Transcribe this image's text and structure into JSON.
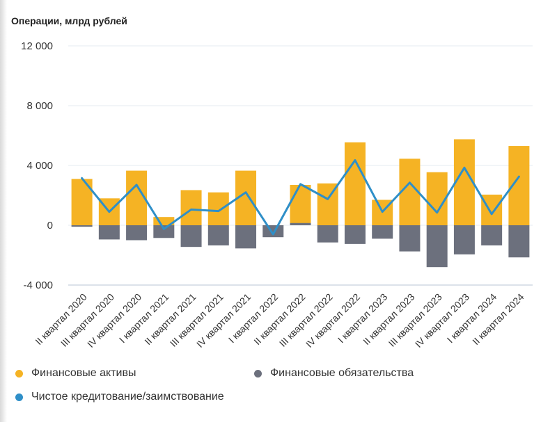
{
  "chart_data": {
    "type": "bar",
    "title": "Операции, млрд рублей",
    "ylim": [
      -4000,
      12000
    ],
    "yticks": [
      -4000,
      0,
      4000,
      8000,
      12000
    ],
    "ytick_labels": [
      "-4 000",
      "0",
      "4 000",
      "8 000",
      "12 000"
    ],
    "grid": true,
    "legend_position": "bottom",
    "categories": [
      "II квартал 2020",
      "III квартал 2020",
      "IV квартал 2020",
      "I квартал 2021",
      "II квартал 2021",
      "III квартал 2021",
      "IV квартал 2021",
      "I квартал 2022",
      "II квартал 2022",
      "III квартал 2022",
      "IV квартал 2022",
      "I квартал 2023",
      "II квартал 2023",
      "III квартал 2023",
      "IV квартал 2023",
      "I квартал 2024",
      "II квартал 2024"
    ],
    "series": [
      {
        "name": "Финансовые активы",
        "type": "bar",
        "color": "#f5b324",
        "values": [
          3100,
          1800,
          3650,
          550,
          2350,
          2200,
          3650,
          0,
          2700,
          2800,
          5550,
          1700,
          4450,
          3550,
          5750,
          2050,
          5300
        ]
      },
      {
        "name": "Финансовые обязательства",
        "type": "bar",
        "color": "#6c707d",
        "values": [
          -100,
          -950,
          -1000,
          -850,
          -1450,
          -1350,
          -1550,
          -800,
          150,
          -1150,
          -1250,
          -900,
          -1750,
          -2800,
          -1950,
          -1350,
          -2150
        ]
      },
      {
        "name": "Чистое кредитование/заимствование",
        "type": "line",
        "color": "#2f8fc8",
        "values": [
          3150,
          900,
          2700,
          -250,
          1050,
          950,
          2200,
          -600,
          2750,
          1750,
          4350,
          900,
          2850,
          850,
          3850,
          750,
          3250
        ]
      }
    ]
  }
}
